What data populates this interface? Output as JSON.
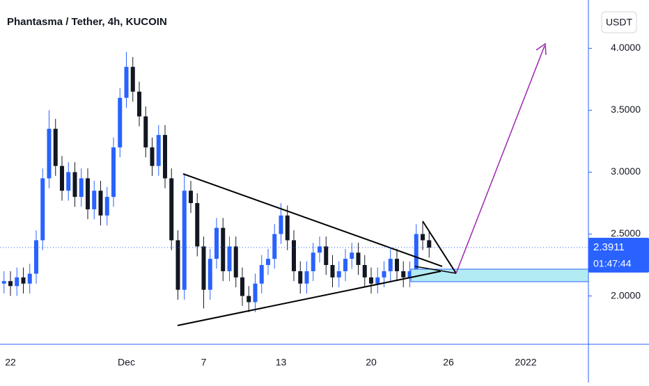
{
  "chart_data": {
    "type": "candlestick",
    "title": "Phantasma / Tether, 4h, KUCOIN",
    "currency": "USDT",
    "countdown": "01:47:44",
    "last_price": 2.3911,
    "up_color": "#2962ff",
    "down_color": "#131722",
    "ylim": [
      1.61,
      4.39
    ],
    "yticks": [
      {
        "value": 2,
        "label": "2.0000"
      },
      {
        "value": 2.5,
        "label": "2.5000"
      },
      {
        "value": 3,
        "label": "3.0000"
      },
      {
        "value": 3.5,
        "label": "3.5000"
      },
      {
        "value": 4,
        "label": "4.0000"
      }
    ],
    "categories": [
      null,
      "22",
      null,
      null,
      null,
      null,
      null,
      null,
      null,
      null,
      null,
      null,
      null,
      null,
      null,
      null,
      null,
      null,
      null,
      "Dec",
      null,
      null,
      null,
      null,
      null,
      null,
      null,
      null,
      null,
      null,
      null,
      "7",
      null,
      null,
      null,
      null,
      null,
      null,
      null,
      null,
      null,
      null,
      null,
      "13",
      null,
      null,
      null,
      null,
      null,
      null,
      null,
      null,
      null,
      null,
      null,
      null,
      null,
      "20",
      null,
      null,
      null,
      null,
      null,
      null,
      null,
      null,
      null,
      null,
      null,
      "26",
      null,
      null,
      null,
      null,
      null,
      null,
      null,
      null,
      null,
      null,
      null,
      "2022"
    ],
    "open": [
      2.1,
      2.12,
      2.08,
      2.15,
      2.1,
      2.18,
      2.45,
      2.95,
      3.35,
      3.05,
      2.85,
      3.0,
      2.8,
      2.95,
      2.7,
      2.85,
      2.65,
      2.8,
      3.2,
      3.6,
      3.85,
      3.65,
      3.45,
      3.2,
      3.05,
      3.3,
      2.95,
      2.45,
      2.05,
      2.85,
      2.75,
      2.4,
      2.05,
      2.3,
      2.55,
      2.2,
      2.4,
      2.15,
      2.0,
      1.95,
      2.1,
      2.25,
      2.3,
      2.5,
      2.65,
      2.45,
      2.2,
      2.1,
      2.2,
      2.35,
      2.4,
      2.25,
      2.15,
      2.2,
      2.3,
      2.35,
      2.25,
      2.15,
      2.1,
      2.15,
      2.2,
      2.3,
      2.2,
      2.15,
      2.2,
      2.5,
      2.45,
      null,
      null,
      null,
      null,
      null,
      null,
      null,
      null,
      null,
      null,
      null,
      null,
      null,
      null,
      null
    ],
    "high": [
      2.2,
      2.2,
      2.23,
      2.23,
      2.26,
      2.53,
      3.03,
      3.5,
      3.43,
      3.13,
      3.08,
      3.08,
      3.03,
      3.03,
      2.93,
      2.93,
      2.88,
      3.28,
      3.68,
      3.97,
      3.93,
      3.73,
      3.53,
      3.28,
      3.38,
      3.38,
      3.03,
      2.53,
      2.98,
      2.93,
      2.83,
      2.48,
      2.38,
      2.63,
      2.63,
      2.48,
      2.48,
      2.23,
      2.08,
      2.18,
      2.33,
      2.38,
      2.58,
      2.75,
      2.73,
      2.53,
      2.28,
      2.28,
      2.43,
      2.48,
      2.48,
      2.33,
      2.28,
      2.38,
      2.43,
      2.43,
      2.33,
      2.23,
      2.23,
      2.28,
      2.38,
      2.38,
      2.28,
      2.28,
      2.58,
      2.6,
      2.53,
      null,
      null,
      null,
      null,
      null,
      null,
      null,
      null,
      null,
      null,
      null,
      null,
      null,
      null,
      null
    ],
    "low": [
      2.02,
      2.0,
      2.0,
      2.02,
      2.02,
      2.1,
      2.37,
      2.87,
      2.97,
      2.77,
      2.77,
      2.72,
      2.72,
      2.62,
      2.62,
      2.57,
      2.57,
      2.72,
      3.12,
      3.52,
      3.57,
      3.37,
      3.12,
      2.97,
      2.97,
      2.87,
      2.37,
      1.97,
      1.97,
      2.67,
      2.32,
      1.9,
      1.97,
      2.22,
      2.12,
      2.12,
      2.07,
      1.92,
      1.87,
      1.87,
      2.02,
      2.17,
      2.22,
      2.42,
      2.37,
      2.12,
      2.02,
      2.02,
      2.12,
      2.27,
      2.17,
      2.07,
      2.07,
      2.12,
      2.22,
      2.17,
      2.07,
      2.02,
      2.02,
      2.07,
      2.12,
      2.12,
      2.07,
      2.07,
      2.12,
      2.37,
      2.31,
      null,
      null,
      null,
      null,
      null,
      null,
      null,
      null,
      null,
      null,
      null,
      null,
      null,
      null,
      null
    ],
    "close": [
      2.12,
      2.08,
      2.15,
      2.1,
      2.18,
      2.45,
      2.95,
      3.35,
      3.05,
      2.85,
      3.0,
      2.8,
      2.95,
      2.7,
      2.85,
      2.65,
      2.8,
      3.2,
      3.6,
      3.85,
      3.65,
      3.45,
      3.2,
      3.05,
      3.3,
      2.95,
      2.45,
      2.05,
      2.85,
      2.75,
      2.4,
      2.05,
      2.3,
      2.55,
      2.2,
      2.4,
      2.15,
      2.0,
      1.95,
      2.1,
      2.25,
      2.3,
      2.5,
      2.65,
      2.45,
      2.2,
      2.1,
      2.2,
      2.35,
      2.4,
      2.25,
      2.15,
      2.2,
      2.3,
      2.35,
      2.25,
      2.15,
      2.1,
      2.15,
      2.2,
      2.3,
      2.2,
      2.15,
      2.2,
      2.5,
      2.45,
      2.39,
      null,
      null,
      null,
      null,
      null,
      null,
      null,
      null,
      null,
      null,
      null,
      null,
      null,
      null,
      null
    ]
  }
}
